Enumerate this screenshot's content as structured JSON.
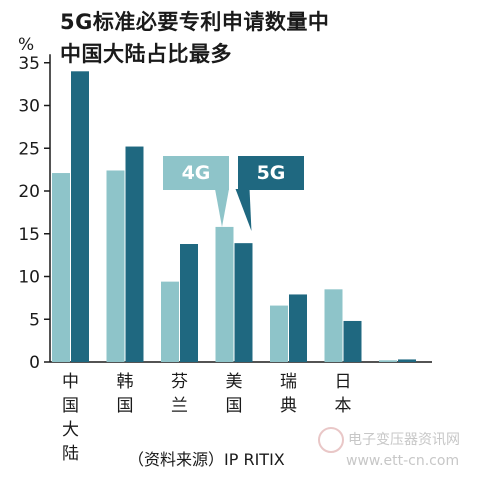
{
  "title_lines": [
    "5G标准必要专利申请数量中",
    "中国大陆占比最多"
  ],
  "source": "（资料来源）IP RITIX",
  "watermark": {
    "line1": "电子变压器资讯网",
    "line2": "www.ett-cn.com"
  },
  "colors": {
    "4G": "#8ec4c9",
    "5G": "#1f6880"
  },
  "chart_data": {
    "type": "bar",
    "title": "5G标准必要专利申请数量中中国大陆占比最多",
    "unit": "%",
    "categories": [
      "中国大陆",
      "韩国",
      "芬兰",
      "美国",
      "瑞典",
      "日本",
      ""
    ],
    "series": [
      {
        "name": "4G",
        "values": [
          22.1,
          22.4,
          9.4,
          15.8,
          6.6,
          8.5,
          0.2
        ]
      },
      {
        "name": "5G",
        "values": [
          34.0,
          25.2,
          13.8,
          13.9,
          7.9,
          4.8,
          0.3
        ]
      }
    ],
    "yticks": [
      0,
      5,
      10,
      15,
      20,
      25,
      30,
      35
    ],
    "ylim": [
      0,
      36
    ],
    "grid": false,
    "legend": "middle"
  }
}
